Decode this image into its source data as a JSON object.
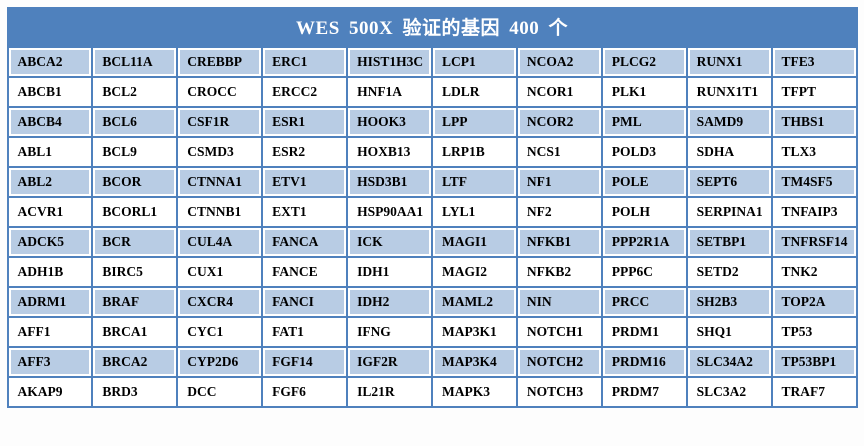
{
  "title": "WES 500X 验证的基因 400 个",
  "colors": {
    "header_bg": "#4F81BD",
    "grid": "#4F81BD",
    "row_shaded_bg": "#B8CCE4",
    "row_plain_bg": "#FFFFFF",
    "header_text": "#FFFFFF",
    "cell_text": "#000000"
  },
  "table": {
    "columns": 10,
    "rows": [
      [
        "ABCA2",
        "BCL11A",
        "CREBBP",
        "ERC1",
        "HIST1H3C",
        "LCP1",
        "NCOA2",
        "PLCG2",
        "RUNX1",
        "TFE3"
      ],
      [
        "ABCB1",
        "BCL2",
        "CROCC",
        "ERCC2",
        "HNF1A",
        "LDLR",
        "NCOR1",
        "PLK1",
        "RUNX1T1",
        "TFPT"
      ],
      [
        "ABCB4",
        "BCL6",
        "CSF1R",
        "ESR1",
        "HOOK3",
        "LPP",
        "NCOR2",
        "PML",
        "SAMD9",
        "THBS1"
      ],
      [
        "ABL1",
        "BCL9",
        "CSMD3",
        "ESR2",
        "HOXB13",
        "LRP1B",
        "NCS1",
        "POLD3",
        "SDHA",
        "TLX3"
      ],
      [
        "ABL2",
        "BCOR",
        "CTNNA1",
        "ETV1",
        "HSD3B1",
        "LTF",
        "NF1",
        "POLE",
        "SEPT6",
        "TM4SF5"
      ],
      [
        "ACVR1",
        "BCORL1",
        "CTNNB1",
        "EXT1",
        "HSP90AA1",
        "LYL1",
        "NF2",
        "POLH",
        "SERPINA1",
        "TNFAIP3"
      ],
      [
        "ADCK5",
        "BCR",
        "CUL4A",
        "FANCA",
        "ICK",
        "MAGI1",
        "NFKB1",
        "PPP2R1A",
        "SETBP1",
        "TNFRSF14"
      ],
      [
        "ADH1B",
        "BIRC5",
        "CUX1",
        "FANCE",
        "IDH1",
        "MAGI2",
        "NFKB2",
        "PPP6C",
        "SETD2",
        "TNK2"
      ],
      [
        "ADRM1",
        "BRAF",
        "CXCR4",
        "FANCI",
        "IDH2",
        "MAML2",
        "NIN",
        "PRCC",
        "SH2B3",
        "TOP2A"
      ],
      [
        "AFF1",
        "BRCA1",
        "CYC1",
        "FAT1",
        "IFNG",
        "MAP3K1",
        "NOTCH1",
        "PRDM1",
        "SHQ1",
        "TP53"
      ],
      [
        "AFF3",
        "BRCA2",
        "CYP2D6",
        "FGF14",
        "IGF2R",
        "MAP3K4",
        "NOTCH2",
        "PRDM16",
        "SLC34A2",
        "TP53BP1"
      ],
      [
        "AKAP9",
        "BRD3",
        "DCC",
        "FGF6",
        "IL21R",
        "MAPK3",
        "NOTCH3",
        "PRDM7",
        "SLC3A2",
        "TRAF7"
      ]
    ]
  }
}
